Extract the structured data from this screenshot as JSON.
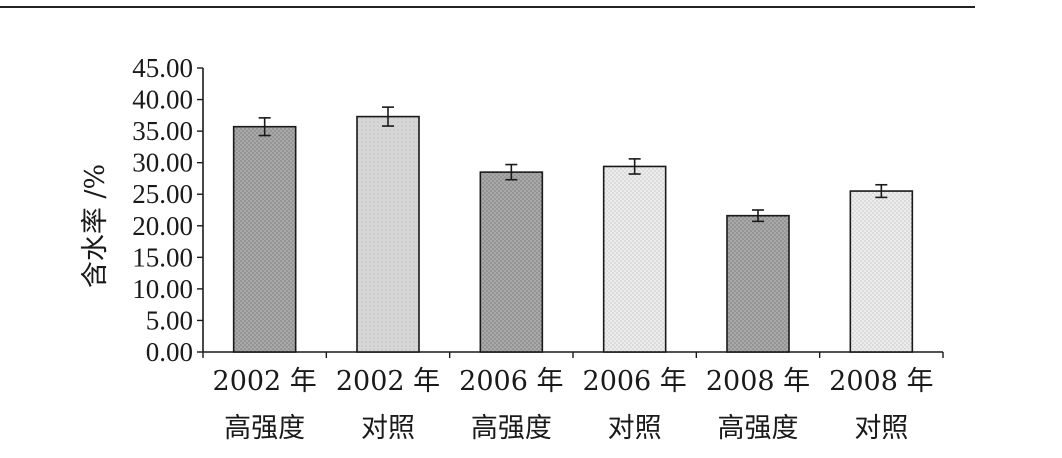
{
  "chart_data": {
    "type": "bar",
    "title": "",
    "xlabel": "",
    "ylabel": "含水率 /%",
    "ylim": [
      0,
      45
    ],
    "yticks": [
      "0.00",
      "5.00",
      "10.00",
      "15.00",
      "20.00",
      "25.00",
      "30.00",
      "35.00",
      "40.00",
      "45.00"
    ],
    "categories": [
      [
        "2002 年",
        "高强度"
      ],
      [
        "2002 年",
        "对照"
      ],
      [
        "2006 年",
        "高强度"
      ],
      [
        "2006 年",
        "对照"
      ],
      [
        "2008 年",
        "高强度"
      ],
      [
        "2008 年",
        "对照"
      ]
    ],
    "values": [
      35.7,
      37.3,
      28.5,
      29.4,
      21.6,
      25.5
    ],
    "errors": [
      1.4,
      1.5,
      1.2,
      1.2,
      0.9,
      1.0
    ],
    "patterns": [
      "dark",
      "light",
      "dark",
      "dots",
      "dark",
      "dots"
    ],
    "grid": false,
    "legend": "none"
  },
  "colors": {
    "dark_fill": "#a9a9a9",
    "light_fill": "#d6d6d6",
    "dots_fill": "#ececec",
    "stroke": "#1a1a1a"
  }
}
